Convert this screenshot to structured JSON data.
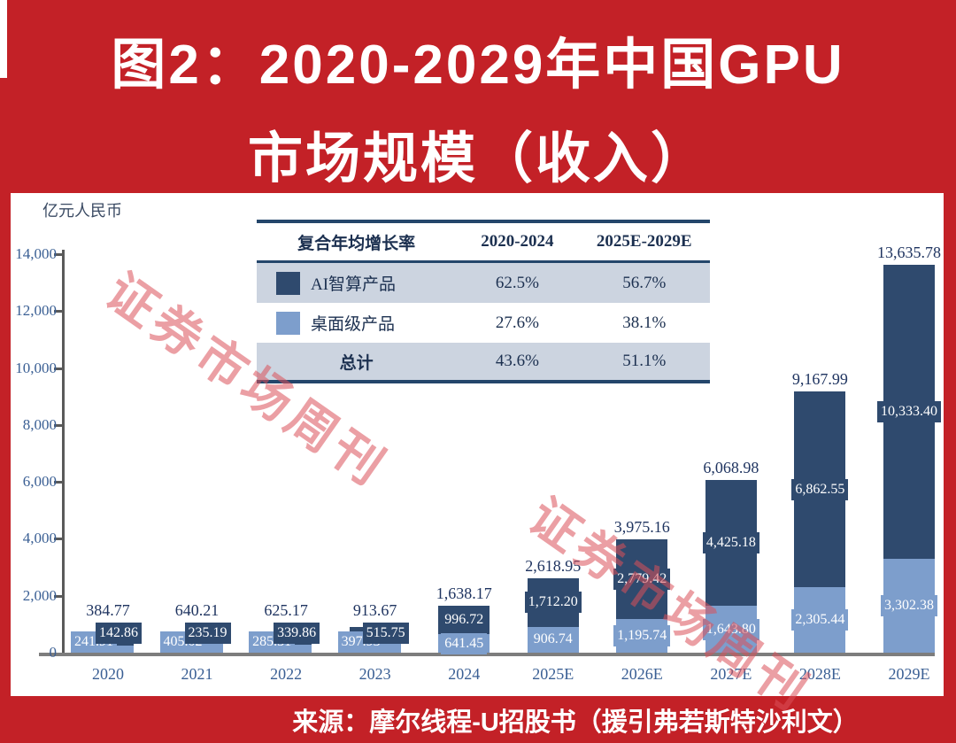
{
  "header": {
    "title_line1": "图2：2020-2029年中国GPU",
    "title_line2": "市场规模（收入）"
  },
  "footer": {
    "source": "来源：摩尔线程-U招股书（援引弗若斯特沙利文）"
  },
  "watermark": {
    "text": "证券市场周刊"
  },
  "colors": {
    "accent_red": "#c32127",
    "series_ai_dark_blue": "#2f4a6e",
    "series_desktop_light_blue": "#7d9ecc",
    "table_row_shade": "#ccd4e0",
    "table_border_navy": "#24466b",
    "axis_text_blue": "#3a5f94",
    "total_label_navy": "#1f3460"
  },
  "table": {
    "headers": [
      "复合年均增长率",
      "2020-2024",
      "2025E-2029E"
    ],
    "rows": [
      {
        "label": "AI智算产品",
        "swatch_color": "#2f4a6e",
        "cagr_2020_2024": "62.5%",
        "cagr_2025e_2029e": "56.7%"
      },
      {
        "label": "桌面级产品",
        "swatch_color": "#7d9ecc",
        "cagr_2020_2024": "27.6%",
        "cagr_2025e_2029e": "38.1%"
      },
      {
        "label": "总计",
        "swatch_color": null,
        "cagr_2020_2024": "43.6%",
        "cagr_2025e_2029e": "51.1%"
      }
    ]
  },
  "chart_data": {
    "type": "bar",
    "stacked": true,
    "title": "2020-2029年中国GPU市场规模（收入）",
    "ylabel": "亿元人民币",
    "xlabel": "",
    "ylim": [
      0,
      14000
    ],
    "grid": false,
    "legend_position": "in-table-top-center",
    "yticks": [
      0,
      2000,
      4000,
      6000,
      8000,
      10000,
      12000,
      14000
    ],
    "ytick_labels": [
      "0",
      "2,000",
      "4,000",
      "6,000",
      "8,000",
      "10,000",
      "12,000",
      "14,000"
    ],
    "categories": [
      "2020",
      "2021",
      "2022",
      "2023",
      "2024",
      "2025E",
      "2026E",
      "2027E",
      "2028E",
      "2029E"
    ],
    "series": [
      {
        "name": "AI智算产品",
        "color": "#2f4a6e",
        "values": [
          142.86,
          235.19,
          339.86,
          515.75,
          996.72,
          1712.2,
          2779.42,
          4425.18,
          6862.55,
          10333.4
        ],
        "labels": [
          "142.86",
          "235.19",
          "339.86",
          "515.75",
          "996.72",
          "1,712.20",
          "2,779.42",
          "4,425.18",
          "6,862.55",
          "10,333.40"
        ]
      },
      {
        "name": "桌面级产品",
        "color": "#7d9ecc",
        "values": [
          241.91,
          405.02,
          285.31,
          397.93,
          641.45,
          906.74,
          1195.74,
          1643.8,
          2305.44,
          3302.38
        ],
        "labels": [
          "241.91",
          "405.02",
          "285.31",
          "397.93",
          "641.45",
          "906.74",
          "1,195.74",
          "1,643.80",
          "2,305.44",
          "3,302.38"
        ]
      }
    ],
    "totals": {
      "values": [
        384.77,
        640.21,
        625.17,
        913.67,
        1638.17,
        2618.95,
        3975.16,
        6068.98,
        9167.99,
        13635.78
      ],
      "labels": [
        "384.77",
        "640.21",
        "625.17",
        "913.67",
        "1,638.17",
        "2,618.95",
        "3,975.16",
        "6,068.98",
        "9,167.99",
        "13,635.78"
      ]
    }
  }
}
